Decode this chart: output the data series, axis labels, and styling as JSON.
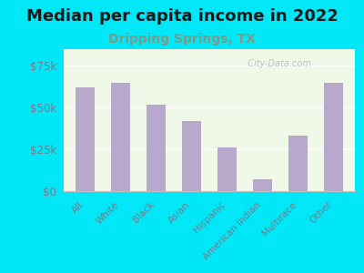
{
  "title": "Median per capita income in 2022",
  "subtitle": "Dripping Springs, TX",
  "categories": [
    "All",
    "White",
    "Black",
    "Asian",
    "Hispanic",
    "American Indian",
    "Multirace",
    "Other"
  ],
  "values": [
    62000,
    65000,
    52000,
    42000,
    26000,
    7000,
    33000,
    65000
  ],
  "bar_color": "#b8a8cc",
  "background_outer": "#00e8f8",
  "title_color": "#1a1a1a",
  "subtitle_color": "#7a9a8a",
  "axis_label_color": "#7a7a8a",
  "tick_label_color": "#7a7a8a",
  "ylim": [
    0,
    85000
  ],
  "yticks": [
    0,
    25000,
    50000,
    75000
  ],
  "ytick_labels": [
    "$0",
    "$25k",
    "$50k",
    "$75k"
  ],
  "title_fontsize": 13,
  "subtitle_fontsize": 10,
  "watermark": "  City-Data.com"
}
